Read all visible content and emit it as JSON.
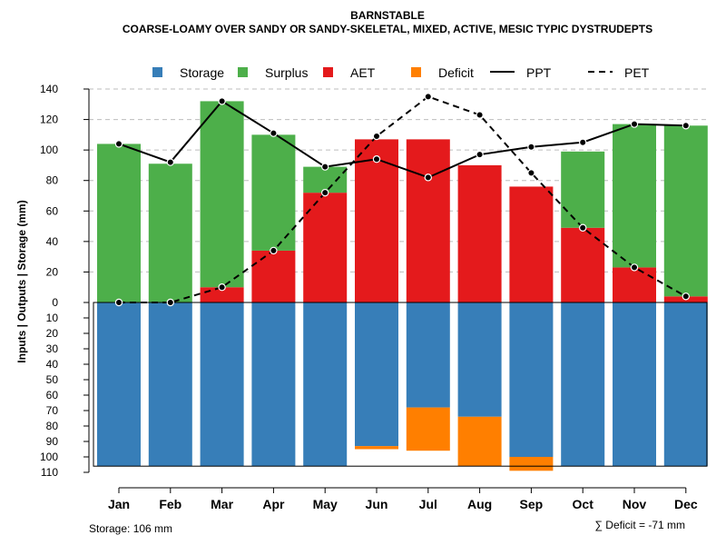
{
  "chart_data": {
    "type": "bar",
    "title": "BARNSTABLE",
    "subtitle": "COARSE-LOAMY OVER SANDY OR SANDY-SKELETAL, MIXED, ACTIVE, MESIC TYPIC DYSTRUDEPTS",
    "ylabel": "Inputs | Outputs | Storage     (mm)",
    "categories": [
      "Jan",
      "Feb",
      "Mar",
      "Apr",
      "May",
      "Jun",
      "Jul",
      "Aug",
      "Sep",
      "Oct",
      "Nov",
      "Dec"
    ],
    "upper_ticks": [
      "0",
      "20",
      "40",
      "60",
      "80",
      "100",
      "120",
      "140"
    ],
    "lower_ticks": [
      "10",
      "20",
      "30",
      "40",
      "50",
      "60",
      "70",
      "80",
      "90",
      "100",
      "110"
    ],
    "ylim_upper": [
      0,
      140
    ],
    "ylim_lower": [
      0,
      110
    ],
    "storage_capacity": 106,
    "series": [
      {
        "name": "AET",
        "color": "#E41A1C",
        "values": [
          0,
          0,
          10,
          34,
          72,
          107,
          107,
          90,
          76,
          49,
          23,
          4
        ]
      },
      {
        "name": "Surplus",
        "color": "#4DAF4A",
        "values": [
          104,
          91,
          122,
          76,
          17,
          0,
          0,
          0,
          0,
          50,
          94,
          112
        ]
      },
      {
        "name": "Storage",
        "color": "#377EB8",
        "values": [
          106,
          106,
          106,
          106,
          106,
          93,
          68,
          74,
          100,
          106,
          106,
          106
        ]
      },
      {
        "name": "Deficit",
        "color": "#FF7F00",
        "values": [
          0,
          0,
          0,
          0,
          0,
          2,
          28,
          32,
          9,
          0,
          0,
          0
        ]
      },
      {
        "name": "PPT",
        "style": "solid",
        "values": [
          104,
          92,
          132,
          111,
          89,
          94,
          82,
          97,
          102,
          105,
          117,
          116
        ]
      },
      {
        "name": "PET",
        "style": "dashed",
        "values": [
          0,
          0,
          10,
          34,
          72,
          109,
          135,
          123,
          85,
          49,
          23,
          4
        ]
      }
    ],
    "legend": {
      "position": "top",
      "items": [
        {
          "label": "Storage",
          "kind": "box",
          "color": "#377EB8"
        },
        {
          "label": "Surplus",
          "kind": "box",
          "color": "#4DAF4A"
        },
        {
          "label": "AET",
          "kind": "box",
          "color": "#E41A1C"
        },
        {
          "label": "Deficit",
          "kind": "box",
          "color": "#FF7F00"
        },
        {
          "label": "PPT",
          "kind": "line",
          "dash": "solid"
        },
        {
          "label": "PET",
          "kind": "line",
          "dash": "dashed"
        }
      ]
    },
    "footer_left": "Storage: 106 mm",
    "footer_right": "∑ Deficit = -71 mm",
    "grid": true
  }
}
